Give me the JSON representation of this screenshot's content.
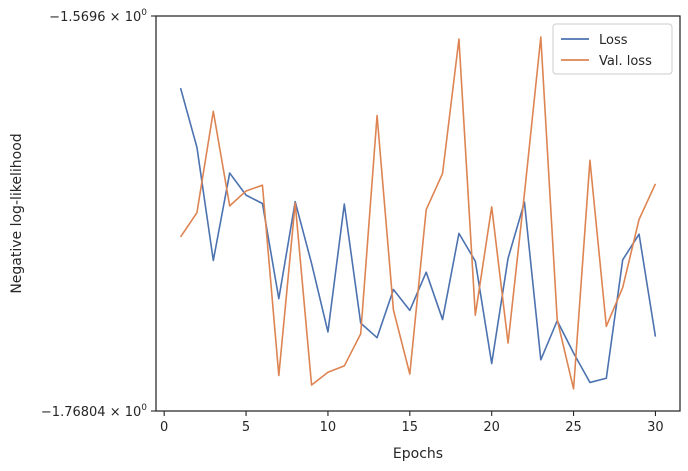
{
  "chart_data": {
    "type": "line",
    "xlabel": "Epochs",
    "ylabel": "Negative log-likelihood",
    "xlim": [
      -0.5,
      31.5
    ],
    "ylim": [
      -1.76804,
      -1.5696
    ],
    "y_scale": "symlog",
    "x_ticks": [
      0,
      5,
      10,
      15,
      20,
      25,
      30
    ],
    "x_tick_labels": [
      "0",
      "5",
      "10",
      "15",
      "20",
      "25",
      "30"
    ],
    "y_ticks": [
      -1.5696,
      -1.76804
    ],
    "y_tick_labels": [
      {
        "base": "−1.5696 × 10",
        "exp": "0"
      },
      {
        "base": "−1.76804 × 10",
        "exp": "0"
      }
    ],
    "grid": false,
    "legend_position": "top-right",
    "x": [
      1,
      2,
      3,
      4,
      5,
      6,
      7,
      8,
      9,
      10,
      11,
      12,
      13,
      14,
      15,
      16,
      17,
      18,
      19,
      20,
      21,
      22,
      23,
      24,
      25,
      26,
      27,
      28,
      29,
      30
    ],
    "series": [
      {
        "name": "Loss",
        "color": "#4c72b0",
        "values": [
          -1.6058,
          -1.6356,
          -1.6924,
          -1.6485,
          -1.6596,
          -1.6638,
          -1.7116,
          -1.6629,
          -1.6939,
          -1.7283,
          -1.6641,
          -1.7239,
          -1.7312,
          -1.707,
          -1.7175,
          -1.6983,
          -1.7221,
          -1.6788,
          -1.6928,
          -1.7442,
          -1.6913,
          -1.6631,
          -1.7423,
          -1.7227,
          -1.7389,
          -1.7537,
          -1.7516,
          -1.6921,
          -1.6792,
          -1.7307
        ]
      },
      {
        "name": "Val. loss",
        "color": "#dd8452",
        "values": [
          -1.6806,
          -1.6684,
          -1.6175,
          -1.665,
          -1.6575,
          -1.6546,
          -1.7502,
          -1.6636,
          -1.755,
          -1.7486,
          -1.7454,
          -1.7293,
          -1.6196,
          -1.7173,
          -1.7495,
          -1.6669,
          -1.6487,
          -1.5812,
          -1.7199,
          -1.6655,
          -1.7339,
          -1.6589,
          -1.5802,
          -1.7221,
          -1.7569,
          -1.6421,
          -1.7255,
          -1.706,
          -1.6718,
          -1.6539
        ]
      }
    ]
  }
}
